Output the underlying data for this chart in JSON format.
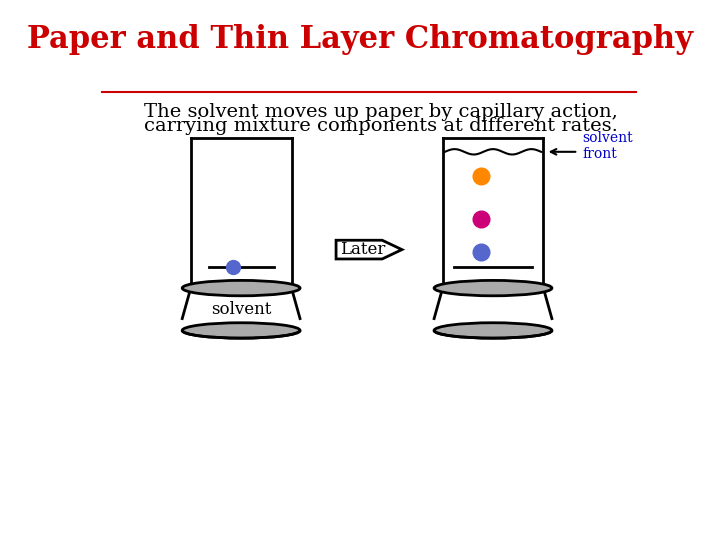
{
  "title": "Paper and Thin Layer Chromatography",
  "title_color": "#cc0000",
  "title_fontsize": 22,
  "subtitle_line1": "The solvent moves up paper by capillary action,",
  "subtitle_line2": "carrying mixture components at different rates.",
  "subtitle_color": "#000000",
  "subtitle_fontsize": 14,
  "background_color": "#ffffff",
  "later_label": "Later",
  "solvent_label": "solvent",
  "solvent_front_label": "solvent\nfront",
  "arrow_label_color": "#0000cc",
  "dot_color_left": "#5566cc",
  "dot_colors_right": [
    "#ff8800",
    "#cc0077",
    "#5566cc"
  ],
  "container_line_color": "#000000"
}
